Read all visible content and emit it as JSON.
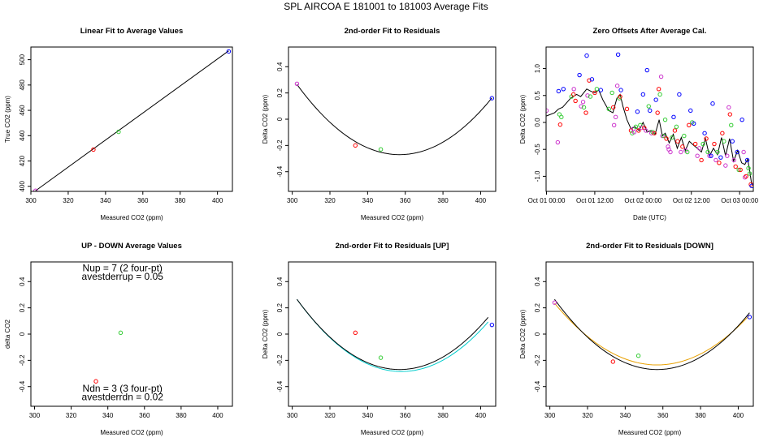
{
  "figure": {
    "title": "SPL   AIRCOA E   181001 to 181003   Average Fits"
  },
  "chart_data": [
    {
      "id": "linear",
      "type": "scatter",
      "title": "Linear Fit to Average Values",
      "xlabel": "Measured CO2 (ppm)",
      "ylabel": "True CO2 (ppm)",
      "xlim": [
        300,
        408
      ],
      "ylim": [
        396,
        510
      ],
      "xticks": [
        300,
        320,
        340,
        360,
        380,
        400
      ],
      "yticks": [
        400,
        420,
        440,
        460,
        480,
        500
      ],
      "points": [
        {
          "x": 302.5,
          "y": 396.5,
          "color": "#cc33cc"
        },
        {
          "x": 333.5,
          "y": 429.0,
          "color": "#ff0000"
        },
        {
          "x": 347.0,
          "y": 443.0,
          "color": "#33cc33"
        },
        {
          "x": 406.0,
          "y": 506.5,
          "color": "#0000ff"
        }
      ],
      "lines": [
        {
          "name": "linear fit",
          "color": "#000000",
          "kind": "linear",
          "x0": 302.5,
          "y0": 396.5,
          "x1": 406.0,
          "y1": 507.0
        }
      ],
      "annotations": []
    },
    {
      "id": "resid",
      "type": "scatter",
      "title": "2nd-order Fit to Residuals",
      "xlabel": "Measured CO2 (ppm)",
      "ylabel": "Delta CO2 (ppm)",
      "xlim": [
        298,
        408
      ],
      "ylim": [
        -0.55,
        0.55
      ],
      "xticks": [
        300,
        320,
        340,
        360,
        380,
        400
      ],
      "yticks": [
        -0.4,
        -0.2,
        0.0,
        0.2,
        0.4
      ],
      "points": [
        {
          "x": 302.5,
          "y": 0.27,
          "color": "#cc33cc"
        },
        {
          "x": 333.5,
          "y": -0.2,
          "color": "#ff0000"
        },
        {
          "x": 347.0,
          "y": -0.23,
          "color": "#33cc33"
        },
        {
          "x": 406.0,
          "y": 0.16,
          "color": "#0000ff"
        }
      ],
      "lines": [
        {
          "name": "2nd-order fit",
          "color": "#000000",
          "kind": "quad",
          "xv": 357,
          "yv": -0.27,
          "xr": 302.5,
          "yr": 0.265,
          "from": 302.5,
          "to": 406
        }
      ],
      "annotations": []
    },
    {
      "id": "offsets",
      "type": "scatter",
      "title": "Zero Offsets After Average Cal.",
      "xlabel": "Date (UTC)",
      "ylabel": "Delta CO2 (ppm)",
      "xlim": [
        -0.1,
        51.4
      ],
      "ylim": [
        -1.28,
        1.4
      ],
      "xticks": [
        0,
        12,
        24,
        36,
        48
      ],
      "xticklabels": [
        "Oct 01 00:00",
        "Oct 01 12:00",
        "Oct 02 00:00",
        "Oct 02 12:00",
        "Oct 03 00:00"
      ],
      "yticks": [
        -1.0,
        -0.5,
        0.0,
        0.5,
        1.0
      ],
      "yticklabels": [
        "-1.0",
        "-0.5",
        "0.0",
        "0.5",
        "1.0"
      ],
      "points": [
        {
          "x": 0.0,
          "y": 0.22,
          "color": "#cc33cc"
        },
        {
          "x": 2.8,
          "y": -0.37,
          "color": "#cc33cc"
        },
        {
          "x": 3.0,
          "y": 0.58,
          "color": "#0000ff"
        },
        {
          "x": 3.2,
          "y": 0.15,
          "color": "#33cc33"
        },
        {
          "x": 3.4,
          "y": -0.04,
          "color": "#ff0000"
        },
        {
          "x": 3.7,
          "y": 0.1,
          "color": "#33cc33"
        },
        {
          "x": 4.2,
          "y": 0.62,
          "color": "#0000ff"
        },
        {
          "x": 6.2,
          "y": 0.48,
          "color": "#33cc33"
        },
        {
          "x": 6.7,
          "y": 0.52,
          "color": "#ff0000"
        },
        {
          "x": 6.8,
          "y": 0.62,
          "color": "#cc33cc"
        },
        {
          "x": 7.2,
          "y": 0.4,
          "color": "#ff0000"
        },
        {
          "x": 8.2,
          "y": 0.88,
          "color": "#0000ff"
        },
        {
          "x": 8.6,
          "y": 0.3,
          "color": "#cc33cc"
        },
        {
          "x": 9.1,
          "y": 0.38,
          "color": "#cc33cc"
        },
        {
          "x": 9.3,
          "y": 0.28,
          "color": "#33cc33"
        },
        {
          "x": 9.8,
          "y": 0.18,
          "color": "#ff0000"
        },
        {
          "x": 10.0,
          "y": 1.24,
          "color": "#0000ff"
        },
        {
          "x": 10.2,
          "y": 0.5,
          "color": "#cc33cc"
        },
        {
          "x": 10.6,
          "y": 0.78,
          "color": "#ff0000"
        },
        {
          "x": 10.9,
          "y": 0.48,
          "color": "#33cc33"
        },
        {
          "x": 11.3,
          "y": 0.8,
          "color": "#0000ff"
        },
        {
          "x": 12.0,
          "y": 0.55,
          "color": "#ff0000"
        },
        {
          "x": 12.5,
          "y": 0.62,
          "color": "#33cc33"
        },
        {
          "x": 13.5,
          "y": 0.6,
          "color": "#0000ff"
        },
        {
          "x": 15.5,
          "y": 0.25,
          "color": "#33cc33"
        },
        {
          "x": 16.3,
          "y": 0.55,
          "color": "#33cc33"
        },
        {
          "x": 16.6,
          "y": 0.28,
          "color": "#ff0000"
        },
        {
          "x": 16.8,
          "y": -0.05,
          "color": "#cc33cc"
        },
        {
          "x": 17.2,
          "y": 0.1,
          "color": "#cc33cc"
        },
        {
          "x": 17.6,
          "y": 0.68,
          "color": "#cc33cc"
        },
        {
          "x": 17.8,
          "y": 1.26,
          "color": "#0000ff"
        },
        {
          "x": 18.1,
          "y": 0.45,
          "color": "#33cc33"
        },
        {
          "x": 18.3,
          "y": 0.48,
          "color": "#ff0000"
        },
        {
          "x": 18.5,
          "y": 0.6,
          "color": "#0000ff"
        },
        {
          "x": 20.0,
          "y": 0.25,
          "color": "#ff0000"
        },
        {
          "x": 21.0,
          "y": -0.15,
          "color": "#ff0000"
        },
        {
          "x": 21.3,
          "y": -0.2,
          "color": "#33cc33"
        },
        {
          "x": 21.6,
          "y": -0.12,
          "color": "#cc33cc"
        },
        {
          "x": 21.8,
          "y": -0.18,
          "color": "#cc33cc"
        },
        {
          "x": 22.2,
          "y": -0.08,
          "color": "#33cc33"
        },
        {
          "x": 22.6,
          "y": 0.2,
          "color": "#0000ff"
        },
        {
          "x": 22.9,
          "y": -0.15,
          "color": "#ff0000"
        },
        {
          "x": 23.3,
          "y": -0.05,
          "color": "#33cc33"
        },
        {
          "x": 23.6,
          "y": -0.1,
          "color": "#cc33cc"
        },
        {
          "x": 24.0,
          "y": 0.52,
          "color": "#0000ff"
        },
        {
          "x": 24.3,
          "y": -0.1,
          "color": "#ff0000"
        },
        {
          "x": 24.7,
          "y": -0.15,
          "color": "#cc33cc"
        },
        {
          "x": 25.0,
          "y": 0.97,
          "color": "#0000ff"
        },
        {
          "x": 25.4,
          "y": 0.3,
          "color": "#33cc33"
        },
        {
          "x": 25.7,
          "y": 0.22,
          "color": "#0000ff"
        },
        {
          "x": 26.1,
          "y": -0.2,
          "color": "#cc33cc"
        },
        {
          "x": 26.4,
          "y": -0.18,
          "color": "#33cc33"
        },
        {
          "x": 26.8,
          "y": -0.2,
          "color": "#ff0000"
        },
        {
          "x": 27.2,
          "y": 0.42,
          "color": "#0000ff"
        },
        {
          "x": 27.6,
          "y": 0.18,
          "color": "#ff0000"
        },
        {
          "x": 27.9,
          "y": 0.62,
          "color": "#ff0000"
        },
        {
          "x": 28.2,
          "y": 0.52,
          "color": "#33cc33"
        },
        {
          "x": 28.5,
          "y": 0.85,
          "color": "#cc33cc"
        },
        {
          "x": 28.8,
          "y": -0.25,
          "color": "#cc33cc"
        },
        {
          "x": 29.1,
          "y": -0.25,
          "color": "#33cc33"
        },
        {
          "x": 29.5,
          "y": 0.05,
          "color": "#33cc33"
        },
        {
          "x": 29.8,
          "y": -0.3,
          "color": "#ff0000"
        },
        {
          "x": 30.2,
          "y": -0.45,
          "color": "#cc33cc"
        },
        {
          "x": 30.4,
          "y": -0.5,
          "color": "#cc33cc"
        },
        {
          "x": 30.8,
          "y": -0.55,
          "color": "#cc33cc"
        },
        {
          "x": 31.2,
          "y": -0.28,
          "color": "#33cc33"
        },
        {
          "x": 31.6,
          "y": 0.1,
          "color": "#0000ff"
        },
        {
          "x": 31.9,
          "y": -0.15,
          "color": "#ff0000"
        },
        {
          "x": 32.3,
          "y": -0.08,
          "color": "#33cc33"
        },
        {
          "x": 32.6,
          "y": -0.35,
          "color": "#ff0000"
        },
        {
          "x": 33.0,
          "y": 0.52,
          "color": "#0000ff"
        },
        {
          "x": 33.4,
          "y": -0.55,
          "color": "#cc33cc"
        },
        {
          "x": 33.8,
          "y": -0.45,
          "color": "#ff0000"
        },
        {
          "x": 34.2,
          "y": -0.25,
          "color": "#33cc33"
        },
        {
          "x": 34.6,
          "y": -0.52,
          "color": "#cc33cc"
        },
        {
          "x": 35.0,
          "y": -0.55,
          "color": "#33cc33"
        },
        {
          "x": 35.4,
          "y": -0.05,
          "color": "#ff0000"
        },
        {
          "x": 35.8,
          "y": 0.22,
          "color": "#0000ff"
        },
        {
          "x": 36.2,
          "y": 0.0,
          "color": "#33cc33"
        },
        {
          "x": 36.6,
          "y": -0.02,
          "color": "#0000ff"
        },
        {
          "x": 37.0,
          "y": -0.4,
          "color": "#ff0000"
        },
        {
          "x": 37.5,
          "y": -0.62,
          "color": "#cc33cc"
        },
        {
          "x": 38.0,
          "y": -0.48,
          "color": "#cc33cc"
        },
        {
          "x": 38.5,
          "y": -0.7,
          "color": "#ff0000"
        },
        {
          "x": 38.9,
          "y": -0.4,
          "color": "#33cc33"
        },
        {
          "x": 39.3,
          "y": -0.2,
          "color": "#0000ff"
        },
        {
          "x": 39.7,
          "y": -0.3,
          "color": "#ff0000"
        },
        {
          "x": 40.1,
          "y": -0.55,
          "color": "#33cc33"
        },
        {
          "x": 40.5,
          "y": -0.62,
          "color": "#cc33cc"
        },
        {
          "x": 40.9,
          "y": -0.62,
          "color": "#0000ff"
        },
        {
          "x": 41.3,
          "y": 0.35,
          "color": "#0000ff"
        },
        {
          "x": 41.7,
          "y": -0.4,
          "color": "#ff0000"
        },
        {
          "x": 42.1,
          "y": -0.7,
          "color": "#cc33cc"
        },
        {
          "x": 42.5,
          "y": -0.55,
          "color": "#33cc33"
        },
        {
          "x": 42.9,
          "y": -0.75,
          "color": "#ff0000"
        },
        {
          "x": 43.3,
          "y": -0.65,
          "color": "#0000ff"
        },
        {
          "x": 43.7,
          "y": -0.2,
          "color": "#ff0000"
        },
        {
          "x": 44.1,
          "y": -0.35,
          "color": "#33cc33"
        },
        {
          "x": 44.5,
          "y": -0.8,
          "color": "#cc33cc"
        },
        {
          "x": 44.9,
          "y": -0.62,
          "color": "#cc33cc"
        },
        {
          "x": 45.3,
          "y": 0.28,
          "color": "#cc33cc"
        },
        {
          "x": 45.6,
          "y": 0.15,
          "color": "#ff0000"
        },
        {
          "x": 45.9,
          "y": -0.05,
          "color": "#33cc33"
        },
        {
          "x": 46.2,
          "y": -0.35,
          "color": "#0000ff"
        },
        {
          "x": 46.6,
          "y": -0.7,
          "color": "#cc33cc"
        },
        {
          "x": 47.0,
          "y": -0.82,
          "color": "#ff0000"
        },
        {
          "x": 47.4,
          "y": -0.55,
          "color": "#0000ff"
        },
        {
          "x": 47.8,
          "y": -0.88,
          "color": "#33cc33"
        },
        {
          "x": 48.2,
          "y": -0.88,
          "color": "#ff0000"
        },
        {
          "x": 48.6,
          "y": 0.05,
          "color": "#0000ff"
        },
        {
          "x": 49.0,
          "y": -0.55,
          "color": "#cc33cc"
        },
        {
          "x": 49.3,
          "y": -1.02,
          "color": "#cc33cc"
        },
        {
          "x": 49.6,
          "y": -1.0,
          "color": "#ff0000"
        },
        {
          "x": 49.9,
          "y": -0.7,
          "color": "#0000ff"
        },
        {
          "x": 50.2,
          "y": -0.85,
          "color": "#33cc33"
        },
        {
          "x": 50.5,
          "y": -0.95,
          "color": "#33cc33"
        },
        {
          "x": 50.8,
          "y": -1.15,
          "color": "#ff0000"
        },
        {
          "x": 51.0,
          "y": -1.18,
          "color": "#0000ff"
        }
      ],
      "lines": [
        {
          "name": "average offset",
          "color": "#000000",
          "kind": "poly",
          "x": [
            0,
            2,
            3,
            4,
            6,
            7.5,
            8.5,
            10,
            11,
            12,
            13,
            14,
            15.5,
            16.5,
            17.5,
            18.3,
            19,
            20,
            21,
            22,
            23,
            24,
            25,
            26,
            27,
            28,
            28.8,
            29.5,
            30.5,
            31.5,
            32.5,
            33.5,
            34.5,
            35.5,
            36.5,
            37.5,
            38.5,
            39.5,
            40.5,
            41.5,
            42.5,
            43.5,
            44.5,
            45.5,
            46.5,
            47.5,
            48.5,
            49.3,
            50.0,
            50.5,
            51.0
          ],
          "y": [
            0.12,
            0.18,
            0.25,
            0.28,
            0.45,
            0.52,
            0.48,
            0.62,
            0.58,
            0.55,
            0.6,
            0.42,
            0.22,
            0.18,
            0.45,
            0.52,
            0.3,
            0.05,
            -0.12,
            -0.08,
            -0.15,
            0.0,
            -0.18,
            -0.15,
            -0.22,
            0.05,
            -0.25,
            -0.2,
            -0.38,
            -0.22,
            -0.48,
            -0.28,
            -0.52,
            -0.35,
            -0.42,
            -0.48,
            -0.55,
            -0.3,
            -0.62,
            -0.48,
            -0.6,
            -0.28,
            -0.62,
            -0.3,
            -0.72,
            -0.52,
            -0.75,
            -0.78,
            -0.68,
            -0.9,
            -1.15
          ]
        }
      ],
      "annotations": []
    },
    {
      "id": "updown",
      "type": "scatter",
      "title": "UP - DOWN Average Values",
      "xlabel": "Measured CO2 (ppm)",
      "ylabel": "delta CO2",
      "xlim": [
        298,
        408
      ],
      "ylim": [
        -0.55,
        0.55
      ],
      "xticks": [
        300,
        320,
        340,
        360,
        380,
        400
      ],
      "yticks": [
        -0.4,
        -0.2,
        0.0,
        0.2,
        0.4
      ],
      "points": [
        {
          "x": 333.5,
          "y": -0.36,
          "color": "#ff0000"
        },
        {
          "x": 347.0,
          "y": 0.01,
          "color": "#33cc33"
        }
      ],
      "lines": [],
      "annotations": [
        {
          "text": "Nup = 7 (2 four-pt)",
          "x": 348,
          "y": 0.48
        },
        {
          "text": "avestderrup =  0.05",
          "x": 348,
          "y": 0.415
        },
        {
          "text": "Ndn = 3 (3 four-pt)",
          "x": 348,
          "y": -0.44
        },
        {
          "text": "avestderrdn =  0.02",
          "x": 348,
          "y": -0.505
        }
      ]
    },
    {
      "id": "resid_up",
      "type": "scatter",
      "title": "2nd-order Fit to Residuals [UP]",
      "xlabel": "Measured CO2 (ppm)",
      "ylabel": "Delta CO2 (ppm)",
      "xlim": [
        298,
        408
      ],
      "ylim": [
        -0.55,
        0.55
      ],
      "xticks": [
        300,
        320,
        340,
        360,
        380,
        400
      ],
      "yticks": [
        -0.4,
        -0.2,
        0.0,
        0.2,
        0.4
      ],
      "points": [
        {
          "x": 333.5,
          "y": 0.01,
          "color": "#ff0000"
        },
        {
          "x": 347.0,
          "y": -0.18,
          "color": "#33cc33"
        },
        {
          "x": 406.0,
          "y": 0.07,
          "color": "#0000ff"
        }
      ],
      "lines": [
        {
          "name": "UP fit",
          "color": "#00cccc",
          "kind": "quad",
          "xv": 358,
          "yv": -0.285,
          "xr": 302.5,
          "yr": 0.265,
          "from": 302.5,
          "to": 404
        },
        {
          "name": "average fit",
          "color": "#000000",
          "kind": "quad",
          "xv": 357,
          "yv": -0.27,
          "xr": 302.5,
          "yr": 0.265,
          "from": 302.5,
          "to": 404
        }
      ],
      "annotations": []
    },
    {
      "id": "resid_down",
      "type": "scatter",
      "title": "2nd-order Fit to Residuals [DOWN]",
      "xlabel": "Measured CO2 (ppm)",
      "ylabel": "Delta CO2 (ppm)",
      "xlim": [
        298,
        408
      ],
      "ylim": [
        -0.55,
        0.55
      ],
      "xticks": [
        300,
        320,
        340,
        360,
        380,
        400
      ],
      "yticks": [
        -0.4,
        -0.2,
        0.0,
        0.2,
        0.4
      ],
      "points": [
        {
          "x": 302.5,
          "y": 0.24,
          "color": "#cc33cc"
        },
        {
          "x": 333.5,
          "y": -0.21,
          "color": "#ff0000"
        },
        {
          "x": 347.0,
          "y": -0.165,
          "color": "#33cc33"
        },
        {
          "x": 406.0,
          "y": 0.13,
          "color": "#0000ff"
        }
      ],
      "lines": [
        {
          "name": "DOWN fit",
          "color": "#e8a000",
          "kind": "quad",
          "xv": 357,
          "yv": -0.235,
          "xr": 302.5,
          "yr": 0.235,
          "from": 302.5,
          "to": 406
        },
        {
          "name": "average fit",
          "color": "#000000",
          "kind": "quad",
          "xv": 357,
          "yv": -0.27,
          "xr": 302.5,
          "yr": 0.265,
          "from": 302.5,
          "to": 406
        }
      ],
      "annotations": []
    }
  ]
}
